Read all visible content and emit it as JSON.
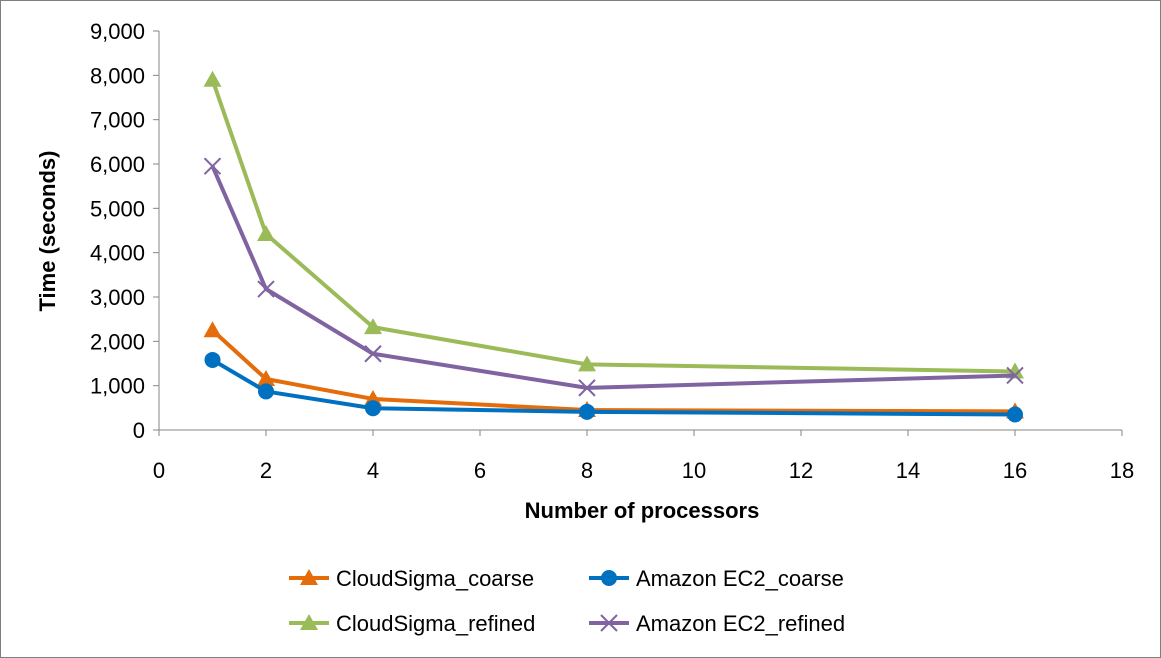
{
  "chart_data": {
    "type": "line",
    "title": "",
    "xlabel": "Number of processors",
    "ylabel": "Time (seconds)",
    "xlim": [
      0,
      18
    ],
    "ylim": [
      0,
      9000
    ],
    "x_ticks": [
      0,
      2,
      4,
      6,
      8,
      10,
      12,
      14,
      16,
      18
    ],
    "y_ticks": [
      0,
      1000,
      2000,
      3000,
      4000,
      5000,
      6000,
      7000,
      8000,
      9000
    ],
    "y_tick_labels": [
      "0",
      "1,000",
      "2,000",
      "3,000",
      "4,000",
      "5,000",
      "6,000",
      "7,000",
      "8,000",
      "9,000"
    ],
    "grid": false,
    "legend_position": "bottom",
    "series": [
      {
        "name": "CloudSigma_coarse",
        "color": "#E46C0A",
        "marker": "triangle",
        "x": [
          1,
          2,
          4,
          8,
          16
        ],
        "y": [
          2250,
          1150,
          700,
          450,
          420
        ]
      },
      {
        "name": "Amazon EC2_coarse",
        "color": "#0070C0",
        "marker": "circle",
        "x": [
          1,
          2,
          4,
          8,
          16
        ],
        "y": [
          1580,
          870,
          490,
          410,
          350
        ]
      },
      {
        "name": "CloudSigma_refined",
        "color": "#9BBB59",
        "marker": "triangle",
        "x": [
          1,
          2,
          4,
          8,
          16
        ],
        "y": [
          7900,
          4420,
          2320,
          1480,
          1320
        ]
      },
      {
        "name": "Amazon EC2_refined",
        "color": "#8064A2",
        "marker": "x",
        "x": [
          1,
          2,
          4,
          8,
          16
        ],
        "y": [
          5950,
          3180,
          1720,
          950,
          1230
        ]
      }
    ]
  }
}
